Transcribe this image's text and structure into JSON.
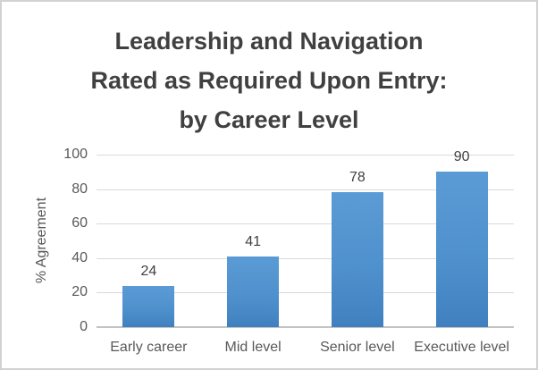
{
  "chart_data": {
    "type": "bar",
    "title": "Leadership and Navigation\nRated as Required Upon Entry:\nby Career Level",
    "categories": [
      "Early career",
      "Mid level",
      "Senior level",
      "Executive level"
    ],
    "values": [
      24,
      41,
      78,
      90
    ],
    "xlabel": "",
    "ylabel": "% Agreement",
    "ylim": [
      0,
      100
    ],
    "yticks": [
      0,
      20,
      40,
      60,
      80,
      100
    ],
    "grid": "horizontal",
    "legend": "none",
    "data_labels": true,
    "colors": {
      "bar_gradient_top": "#5b9bd5",
      "bar_gradient_bottom": "#4080c0",
      "gridline": "#d9d9d9",
      "axis_line": "#c3c3c3",
      "title_text": "#404040",
      "tick_text": "#595959",
      "data_label_text": "#404040",
      "frame_border": "#d2d2d2",
      "background": "#ffffff"
    }
  }
}
